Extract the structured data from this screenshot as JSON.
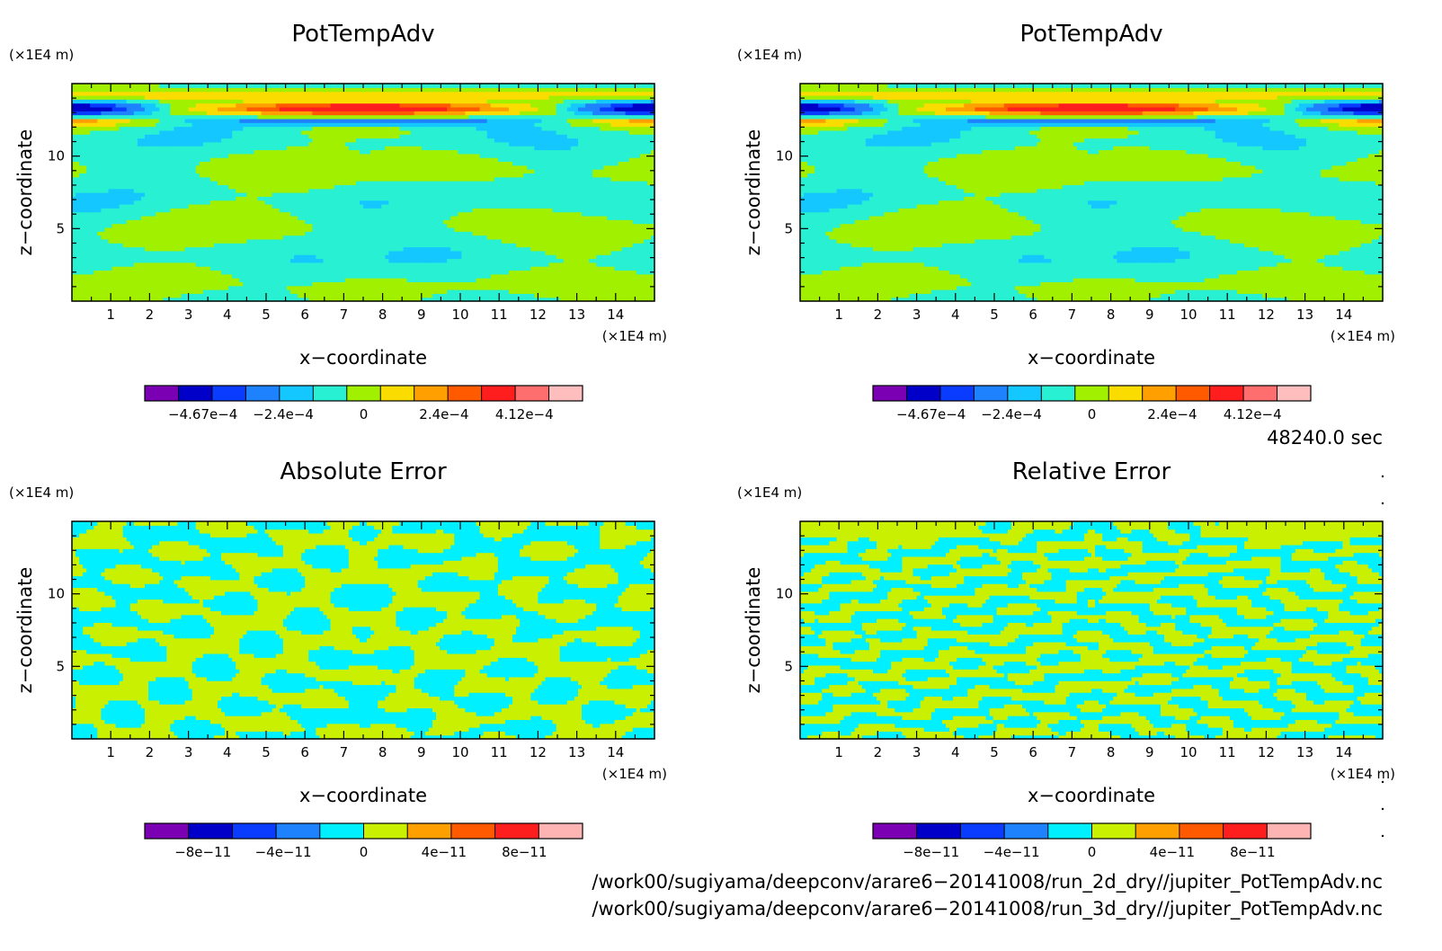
{
  "chart_data": [
    {
      "type": "heatmap",
      "title": "PotTempAdv",
      "xlabel": "x−coordinate",
      "ylabel": "z−coordinate",
      "x_unit": "(×1E4 m)",
      "y_unit": "(×1E4 m)",
      "xlim": [
        0,
        15
      ],
      "ylim": [
        0,
        15
      ],
      "x_ticks": [
        "1",
        "2",
        "3",
        "4",
        "5",
        "6",
        "7",
        "8",
        "9",
        "10",
        "11",
        "12",
        "13",
        "14"
      ],
      "y_ticks": [
        "5",
        "10"
      ],
      "colorbar": {
        "colors": [
          "#7b00b4",
          "#0000c8",
          "#0a3cff",
          "#1e82ff",
          "#14c8ff",
          "#28f0d2",
          "#a0f000",
          "#fadc00",
          "#ffa000",
          "#ff5a00",
          "#ff1e1e",
          "#ff6e6e",
          "#ffbebe"
        ],
        "labels": [
          "−4.67e−4",
          "−2.4e−4",
          "0",
          "2.4e−4",
          "4.12e−4"
        ]
      },
      "field": "potential-temperature-advection"
    },
    {
      "type": "heatmap",
      "title": "PotTempAdv",
      "xlabel": "x−coordinate",
      "ylabel": "z−coordinate",
      "x_unit": "(×1E4 m)",
      "y_unit": "(×1E4 m)",
      "xlim": [
        0,
        15
      ],
      "ylim": [
        0,
        15
      ],
      "x_ticks": [
        "1",
        "2",
        "3",
        "4",
        "5",
        "6",
        "7",
        "8",
        "9",
        "10",
        "11",
        "12",
        "13",
        "14"
      ],
      "y_ticks": [
        "5",
        "10"
      ],
      "colorbar": {
        "colors": [
          "#7b00b4",
          "#0000c8",
          "#0a3cff",
          "#1e82ff",
          "#14c8ff",
          "#28f0d2",
          "#a0f000",
          "#fadc00",
          "#ffa000",
          "#ff5a00",
          "#ff1e1e",
          "#ff6e6e",
          "#ffbebe"
        ],
        "labels": [
          "−4.67e−4",
          "−2.4e−4",
          "0",
          "2.4e−4",
          "4.12e−4"
        ]
      },
      "field": "potential-temperature-advection"
    },
    {
      "type": "heatmap",
      "title": "Absolute Error",
      "xlabel": "x−coordinate",
      "ylabel": "z−coordinate",
      "x_unit": "(×1E4 m)",
      "y_unit": "(×1E4 m)",
      "xlim": [
        0,
        15
      ],
      "ylim": [
        0,
        15
      ],
      "x_ticks": [
        "1",
        "2",
        "3",
        "4",
        "5",
        "6",
        "7",
        "8",
        "9",
        "10",
        "11",
        "12",
        "13",
        "14"
      ],
      "y_ticks": [
        "5",
        "10"
      ],
      "colorbar": {
        "colors": [
          "#7b00b4",
          "#0000c8",
          "#0a3cff",
          "#1e82ff",
          "#00f0ff",
          "#c8f000",
          "#ffa000",
          "#ff5a00",
          "#ff1e1e",
          "#ffb4b4"
        ],
        "labels": [
          "−8e−11",
          "−4e−11",
          "0",
          "4e−11",
          "8e−11"
        ]
      },
      "field": "absolute-error"
    },
    {
      "type": "heatmap",
      "title": "Relative Error",
      "xlabel": "x−coordinate",
      "ylabel": "z−coordinate",
      "x_unit": "(×1E4 m)",
      "y_unit": "(×1E4 m)",
      "xlim": [
        0,
        15
      ],
      "ylim": [
        0,
        15
      ],
      "x_ticks": [
        "1",
        "2",
        "3",
        "4",
        "5",
        "6",
        "7",
        "8",
        "9",
        "10",
        "11",
        "12",
        "13",
        "14"
      ],
      "y_ticks": [
        "5",
        "10"
      ],
      "colorbar": {
        "colors": [
          "#7b00b4",
          "#0000c8",
          "#0a3cff",
          "#1e82ff",
          "#00f0ff",
          "#c8f000",
          "#ffa000",
          "#ff5a00",
          "#ff1e1e",
          "#ffb4b4"
        ],
        "labels": [
          "−8e−11",
          "−4e−11",
          "0",
          "4e−11",
          "8e−11"
        ]
      },
      "field": "relative-error"
    }
  ],
  "time_label": "48240.0 sec",
  "footer_lines": [
    "/work00/sugiyama/deepconv/arare6−20141008/run_2d_dry//jupiter_PotTempAdv.nc",
    "/work00/sugiyama/deepconv/arare6−20141008/run_3d_dry//jupiter_PotTempAdv.nc"
  ]
}
